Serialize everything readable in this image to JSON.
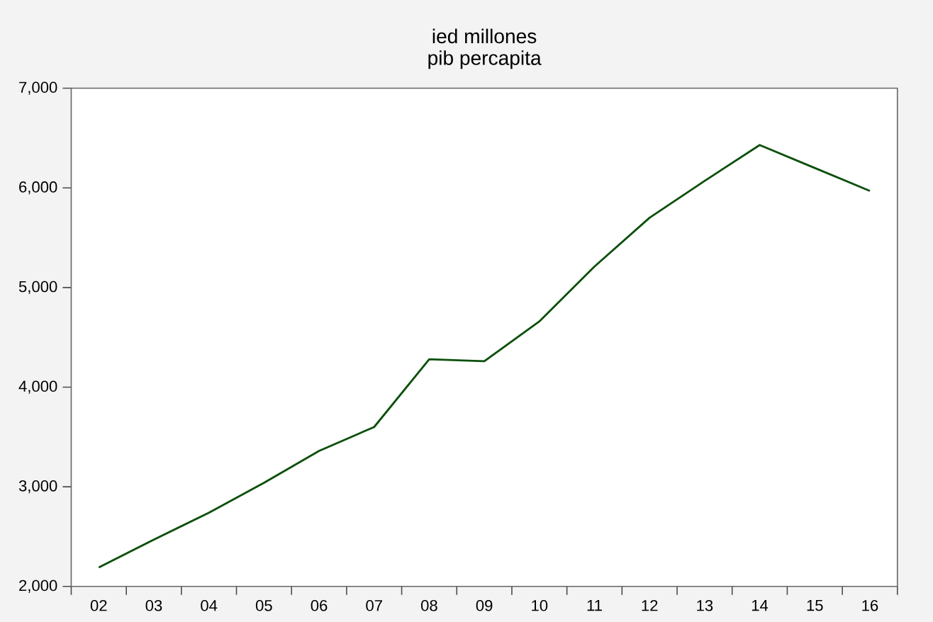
{
  "chart_data": {
    "type": "line",
    "title": "ied millones",
    "subtitle": "pib percapita",
    "categories": [
      "02",
      "03",
      "04",
      "05",
      "06",
      "07",
      "08",
      "09",
      "10",
      "11",
      "12",
      "13",
      "14",
      "15",
      "16"
    ],
    "series": [
      {
        "color": "#0b4f0b",
        "values": [
          2190,
          2470,
          2740,
          3040,
          3360,
          3600,
          4280,
          4260,
          4660,
          5210,
          5700,
          6070,
          6430,
          6200,
          5970
        ]
      }
    ],
    "ylim": [
      2000,
      7000
    ],
    "yticks": [
      {
        "value": 2000,
        "label": "2,000"
      },
      {
        "value": 3000,
        "label": "3,000"
      },
      {
        "value": 4000,
        "label": "4,000"
      },
      {
        "value": 5000,
        "label": "5,000"
      },
      {
        "value": 6000,
        "label": "6,000"
      },
      {
        "value": 7000,
        "label": "7,000"
      }
    ],
    "marker": "none",
    "line_style": "solid"
  }
}
